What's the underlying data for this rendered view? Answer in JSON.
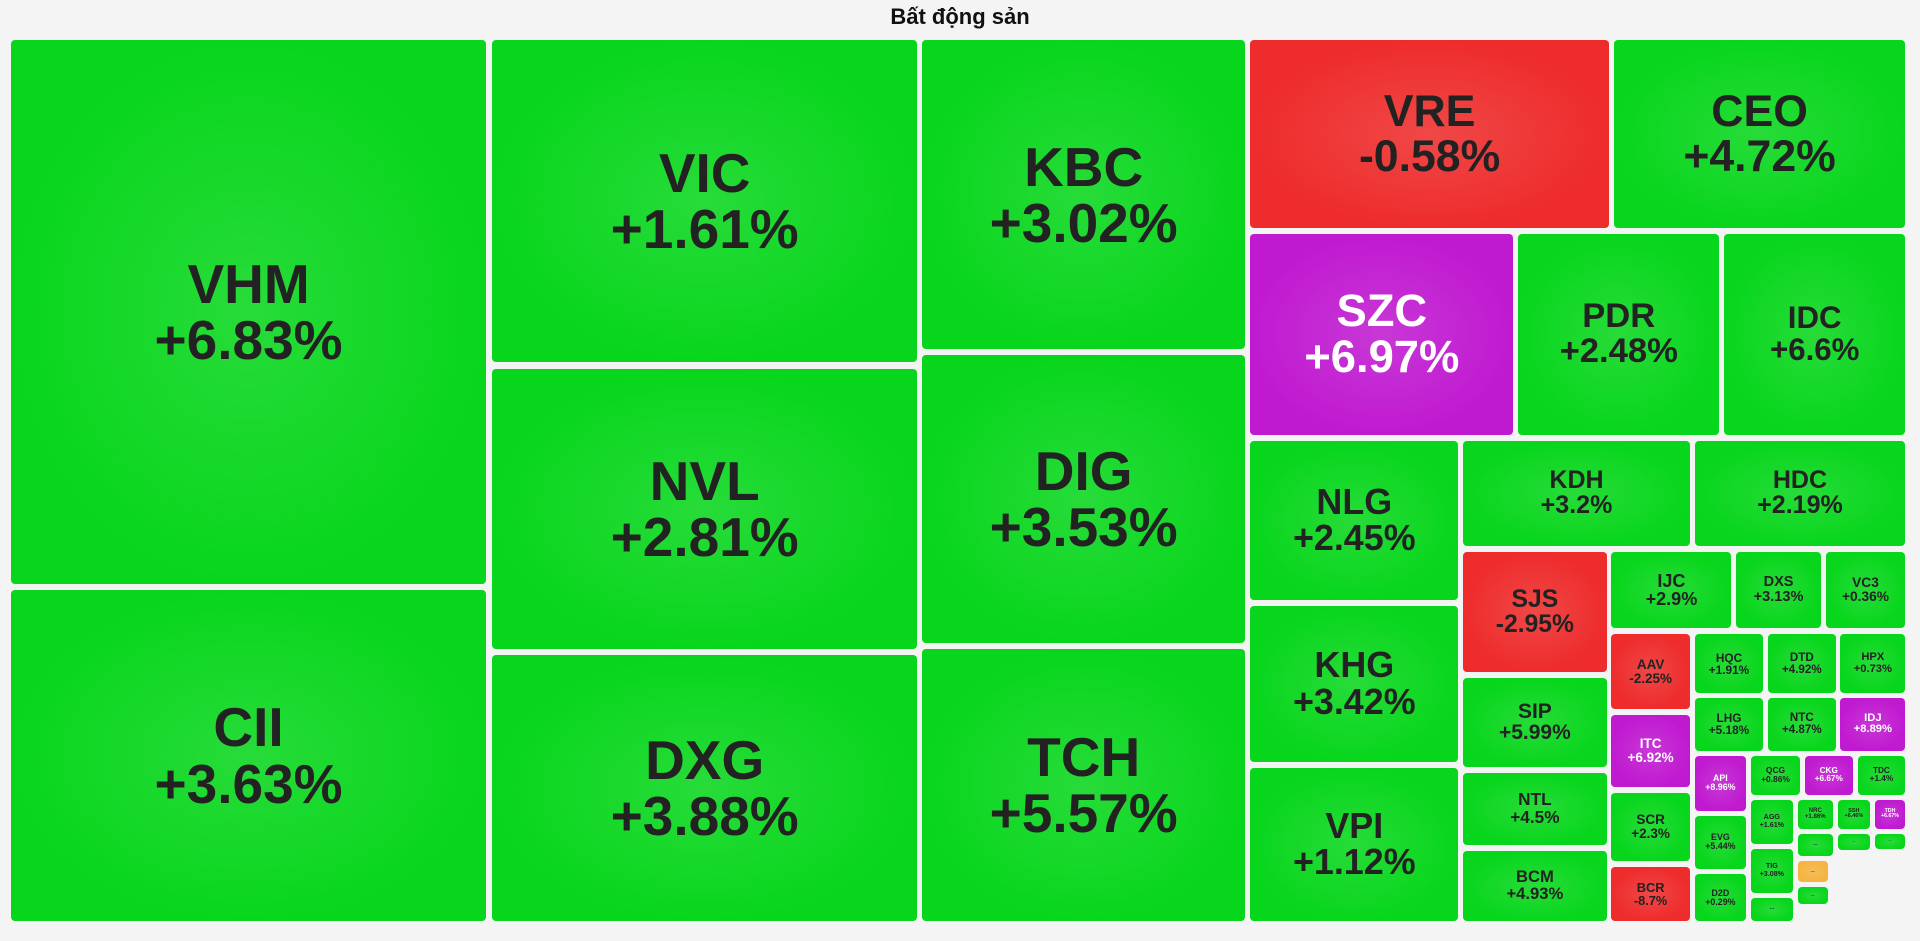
{
  "title": "Bất động sản",
  "tiles": [
    {
      "ticker": "VHM",
      "change": 6.83,
      "change_label": "+6.83%",
      "color": "#08d61c"
    },
    {
      "ticker": "CII",
      "change": 3.63,
      "change_label": "+3.63%",
      "color": "#08d61c"
    },
    {
      "ticker": "VIC",
      "change": 1.61,
      "change_label": "+1.61%",
      "color": "#08d61c"
    },
    {
      "ticker": "NVL",
      "change": 2.81,
      "change_label": "+2.81%",
      "color": "#08d61c"
    },
    {
      "ticker": "DXG",
      "change": 3.88,
      "change_label": "+3.88%",
      "color": "#08d61c"
    },
    {
      "ticker": "KBC",
      "change": 3.02,
      "change_label": "+3.02%",
      "color": "#08d61c"
    },
    {
      "ticker": "DIG",
      "change": 3.53,
      "change_label": "+3.53%",
      "color": "#08d61c"
    },
    {
      "ticker": "TCH",
      "change": 5.57,
      "change_label": "+5.57%",
      "color": "#08d61c"
    },
    {
      "ticker": "VRE",
      "change": -0.58,
      "change_label": "-0.58%",
      "color": "#ee2c2c"
    },
    {
      "ticker": "CEO",
      "change": 4.72,
      "change_label": "+4.72%",
      "color": "#08d61c"
    },
    {
      "ticker": "SZC",
      "change": 6.97,
      "change_label": "+6.97%",
      "color": "#c01ad0"
    },
    {
      "ticker": "PDR",
      "change": 2.48,
      "change_label": "+2.48%",
      "color": "#08d61c"
    },
    {
      "ticker": "IDC",
      "change": 6.6,
      "change_label": "+6.6%",
      "color": "#08d61c"
    },
    {
      "ticker": "NLG",
      "change": 2.45,
      "change_label": "+2.45%",
      "color": "#08d61c"
    },
    {
      "ticker": "KHG",
      "change": 3.42,
      "change_label": "+3.42%",
      "color": "#08d61c"
    },
    {
      "ticker": "VPI",
      "change": 1.12,
      "change_label": "+1.12%",
      "color": "#08d61c"
    },
    {
      "ticker": "KDH",
      "change": 3.2,
      "change_label": "+3.2%",
      "color": "#08d61c"
    },
    {
      "ticker": "HDC",
      "change": 2.19,
      "change_label": "+2.19%",
      "color": "#08d61c"
    },
    {
      "ticker": "SJS",
      "change": -2.95,
      "change_label": "-2.95%",
      "color": "#ee2c2c"
    },
    {
      "ticker": "SIP",
      "change": 5.99,
      "change_label": "+5.99%",
      "color": "#08d61c"
    },
    {
      "ticker": "NTL",
      "change": 4.5,
      "change_label": "+4.5%",
      "color": "#08d61c"
    },
    {
      "ticker": "BCM",
      "change": 4.93,
      "change_label": "+4.93%",
      "color": "#08d61c"
    },
    {
      "ticker": "IJC",
      "change": 2.9,
      "change_label": "+2.9%",
      "color": "#08d61c"
    },
    {
      "ticker": "DXS",
      "change": 3.13,
      "change_label": "+3.13%",
      "color": "#08d61c"
    },
    {
      "ticker": "VC3",
      "change": 0.36,
      "change_label": "+0.36%",
      "color": "#08d61c"
    },
    {
      "ticker": "AAV",
      "change": -2.25,
      "change_label": "-2.25%",
      "color": "#ee2c2c"
    },
    {
      "ticker": "ITC",
      "change": 6.92,
      "change_label": "+6.92%",
      "color": "#c01ad0"
    },
    {
      "ticker": "SCR",
      "change": 2.3,
      "change_label": "+2.3%",
      "color": "#08d61c"
    },
    {
      "ticker": "BCR",
      "change": -8.7,
      "change_label": "-8.7%",
      "color": "#ee2c2c"
    },
    {
      "ticker": "HQC",
      "change": 1.91,
      "change_label": "+1.91%",
      "color": "#08d61c"
    },
    {
      "ticker": "DTD",
      "change": 4.92,
      "change_label": "+4.92%",
      "color": "#08d61c"
    },
    {
      "ticker": "HPX",
      "change": 0.73,
      "change_label": "+0.73%",
      "color": "#08d61c"
    },
    {
      "ticker": "LHG",
      "change": 5.18,
      "change_label": "+5.18%",
      "color": "#08d61c"
    },
    {
      "ticker": "NTC",
      "change": 4.87,
      "change_label": "+4.87%",
      "color": "#08d61c"
    },
    {
      "ticker": "IDJ",
      "change": 8.89,
      "change_label": "+8.89%",
      "color": "#c01ad0"
    },
    {
      "ticker": "API",
      "change": 8.96,
      "change_label": "+8.96%",
      "color": "#c01ad0"
    },
    {
      "ticker": "QCG",
      "change": 0.86,
      "change_label": "+0.86%",
      "color": "#08d61c"
    },
    {
      "ticker": "CKG",
      "change": 6.67,
      "change_label": "+6.67%",
      "color": "#c01ad0"
    },
    {
      "ticker": "TDC",
      "change": 1.4,
      "change_label": "+1.4%",
      "color": "#08d61c"
    },
    {
      "ticker": "EVG",
      "change": 5.44,
      "change_label": "+5.44%",
      "color": "#08d61c"
    },
    {
      "ticker": "D2D",
      "change": 0.29,
      "change_label": "+0.29%",
      "color": "#08d61c"
    },
    {
      "ticker": "AGG",
      "change": 1.61,
      "change_label": "+1.61%",
      "color": "#08d61c"
    },
    {
      "ticker": "TIG",
      "change": 3.08,
      "change_label": "+3.08%",
      "color": "#08d61c"
    },
    {
      "ticker": "NRC",
      "change": 1.86,
      "change_label": "+1.86%",
      "color": "#08d61c"
    },
    {
      "ticker": "SSH",
      "change": 6.46,
      "change_label": "+6.46%",
      "color": "#08d61c"
    },
    {
      "ticker": "TDH",
      "change": 6.67,
      "change_label": "+6.67%",
      "color": "#c01ad0"
    },
    {
      "ticker": "...",
      "color": "#08d61c"
    },
    {
      "ticker": "...",
      "color": "#08d61c"
    },
    {
      "ticker": "...",
      "color": "#f5b442"
    },
    {
      "ticker": "...",
      "color": "#08d61c"
    },
    {
      "ticker": "...",
      "color": "#08d61c"
    },
    {
      "ticker": "...",
      "color": "#08d61c"
    }
  ]
}
